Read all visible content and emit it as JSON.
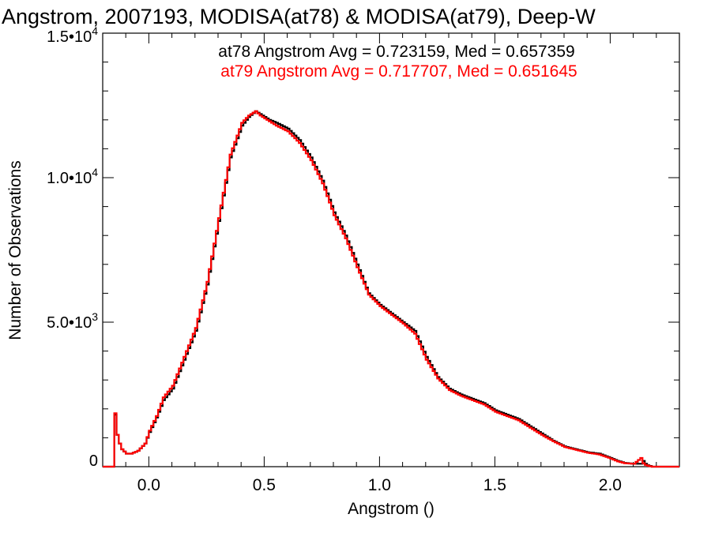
{
  "chart_data": {
    "type": "line",
    "step": true,
    "title": "Angstrom, 2007193, MODISA(at78) & MODISA(at79), Deep-W",
    "xlabel": "Angstrom ()",
    "ylabel": "Number of Observations",
    "xlim": [
      -0.2,
      2.3
    ],
    "ylim": [
      0,
      15000
    ],
    "x_ticks": [
      {
        "value": 0.0,
        "label": "0.0"
      },
      {
        "value": 0.5,
        "label": "0.5"
      },
      {
        "value": 1.0,
        "label": "1.0"
      },
      {
        "value": 1.5,
        "label": "1.5"
      },
      {
        "value": 2.0,
        "label": "2.0"
      }
    ],
    "y_ticks": [
      {
        "value": 0,
        "mantissa": "0",
        "exp": ""
      },
      {
        "value": 5000,
        "mantissa": "5.0•10",
        "exp": "3"
      },
      {
        "value": 10000,
        "mantissa": "1.0•10",
        "exp": "4"
      },
      {
        "value": 15000,
        "mantissa": "1.5•10",
        "exp": "4"
      }
    ],
    "annotations": [
      {
        "text": "at78 Angstrom Avg = 0.723159, Med = 0.657359",
        "color": "#000000"
      },
      {
        "text": "at79 Angstrom Avg = 0.717707, Med = 0.651645",
        "color": "#ff0000"
      }
    ],
    "series": [
      {
        "name": "at78",
        "color": "#000000",
        "x": [
          -0.2,
          -0.16,
          -0.155,
          -0.15,
          -0.14,
          -0.13,
          -0.12,
          -0.1,
          -0.08,
          -0.05,
          -0.02,
          0.0,
          0.03,
          0.06,
          0.1,
          0.15,
          0.2,
          0.25,
          0.3,
          0.35,
          0.4,
          0.43,
          0.46,
          0.48,
          0.52,
          0.55,
          0.6,
          0.65,
          0.7,
          0.75,
          0.8,
          0.85,
          0.9,
          0.95,
          1.0,
          1.05,
          1.1,
          1.15,
          1.2,
          1.25,
          1.3,
          1.35,
          1.4,
          1.45,
          1.5,
          1.55,
          1.6,
          1.65,
          1.7,
          1.75,
          1.8,
          1.85,
          1.9,
          1.95,
          2.0,
          2.03,
          2.06,
          2.1,
          2.13,
          2.14,
          2.15,
          2.16,
          2.18,
          2.3
        ],
        "y": [
          0,
          0,
          2250,
          1800,
          1100,
          800,
          600,
          450,
          450,
          550,
          800,
          1200,
          1700,
          2300,
          2700,
          3700,
          4700,
          6300,
          8500,
          10700,
          11800,
          12100,
          12300,
          12200,
          12000,
          11900,
          11700,
          11300,
          10700,
          9900,
          8800,
          8000,
          7000,
          6000,
          5600,
          5300,
          5000,
          4700,
          3800,
          3100,
          2700,
          2500,
          2350,
          2200,
          1950,
          1800,
          1650,
          1400,
          1150,
          900,
          700,
          600,
          500,
          450,
          300,
          200,
          130,
          100,
          100,
          200,
          100,
          50,
          0,
          0
        ]
      },
      {
        "name": "at79",
        "color": "#ff0000",
        "x": [
          -0.2,
          -0.16,
          -0.155,
          -0.15,
          -0.14,
          -0.13,
          -0.12,
          -0.1,
          -0.08,
          -0.05,
          -0.02,
          0.0,
          0.03,
          0.06,
          0.1,
          0.15,
          0.2,
          0.25,
          0.3,
          0.35,
          0.4,
          0.43,
          0.46,
          0.48,
          0.52,
          0.55,
          0.6,
          0.65,
          0.7,
          0.75,
          0.8,
          0.85,
          0.9,
          0.95,
          1.0,
          1.05,
          1.1,
          1.15,
          1.2,
          1.25,
          1.3,
          1.35,
          1.4,
          1.45,
          1.5,
          1.55,
          1.6,
          1.65,
          1.7,
          1.75,
          1.8,
          1.85,
          1.9,
          1.95,
          2.0,
          2.03,
          2.06,
          2.1,
          2.13,
          2.14,
          2.15,
          2.16,
          2.18,
          2.3
        ],
        "y": [
          0,
          0,
          2300,
          1850,
          1100,
          800,
          600,
          450,
          450,
          550,
          800,
          1250,
          1750,
          2400,
          2800,
          3800,
          4800,
          6400,
          8600,
          10800,
          11900,
          12150,
          12300,
          12150,
          11950,
          11800,
          11600,
          11200,
          10600,
          9800,
          8700,
          7900,
          6900,
          5950,
          5550,
          5250,
          4950,
          4600,
          3700,
          3050,
          2650,
          2450,
          2300,
          2150,
          1900,
          1750,
          1600,
          1350,
          1100,
          880,
          680,
          580,
          480,
          420,
          280,
          180,
          120,
          100,
          300,
          120,
          60,
          30,
          0,
          0
        ]
      }
    ]
  }
}
